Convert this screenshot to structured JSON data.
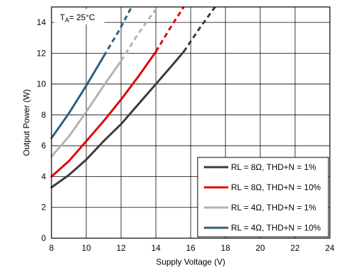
{
  "chart_data": {
    "type": "line",
    "title": "",
    "xlabel": "Supply Voltage (V)",
    "ylabel": "Output Power (W)",
    "xlim": [
      8,
      24
    ],
    "ylim": [
      0,
      15
    ],
    "xticks": [
      "8",
      "10",
      "12",
      "14",
      "16",
      "18",
      "20",
      "22",
      "24"
    ],
    "yticks": [
      "0",
      "2",
      "4",
      "6",
      "8",
      "10",
      "12",
      "14"
    ],
    "grid": true,
    "legend_position": "bottom-right",
    "annotation": {
      "prefix": "T",
      "sub": "A",
      "rest": "= 25°C"
    },
    "series": [
      {
        "name": "RL = 8Ω, THD+N = 1%",
        "color": "#3a3a3a",
        "solid": [
          [
            8,
            3.3
          ],
          [
            9,
            4.1
          ],
          [
            10,
            5.1
          ],
          [
            11,
            6.3
          ],
          [
            12,
            7.4
          ],
          [
            13,
            8.7
          ],
          [
            14,
            10.0
          ],
          [
            15,
            11.3
          ],
          [
            15.6,
            12.1
          ]
        ],
        "dashed": [
          [
            15.6,
            12.1
          ],
          [
            16.5,
            13.6
          ],
          [
            17.4,
            15.0
          ]
        ]
      },
      {
        "name": "RL = 8Ω, THD+N = 10%",
        "color": "#e00000",
        "solid": [
          [
            8,
            4.0
          ],
          [
            9,
            5.0
          ],
          [
            10,
            6.3
          ],
          [
            11,
            7.6
          ],
          [
            12,
            9.0
          ],
          [
            13,
            10.5
          ],
          [
            14,
            12.1
          ]
        ],
        "dashed": [
          [
            14,
            12.1
          ],
          [
            14.8,
            13.6
          ],
          [
            15.6,
            15.0
          ]
        ]
      },
      {
        "name": "RL = 4Ω, THD+N = 1%",
        "color": "#b3b3b3",
        "solid": [
          [
            8,
            5.3
          ],
          [
            9,
            6.6
          ],
          [
            10,
            8.2
          ],
          [
            11,
            9.9
          ],
          [
            12,
            11.5
          ]
        ],
        "dashed": [
          [
            12,
            11.5
          ],
          [
            13,
            13.3
          ],
          [
            14.1,
            15.0
          ]
        ]
      },
      {
        "name": "RL = 4Ω, THD+N = 10%",
        "color": "#2e5f7a",
        "solid": [
          [
            8,
            6.5
          ],
          [
            9,
            8.1
          ],
          [
            10,
            9.9
          ],
          [
            11,
            11.8
          ]
        ],
        "dashed": [
          [
            11,
            11.8
          ],
          [
            11.9,
            13.5
          ],
          [
            12.6,
            15.0
          ]
        ]
      }
    ]
  }
}
